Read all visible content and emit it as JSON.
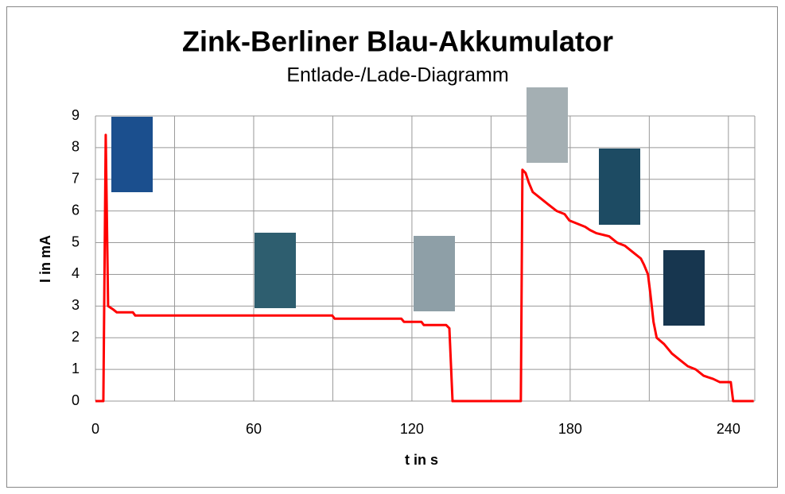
{
  "chart_data": {
    "type": "line",
    "title": "Zink-Berliner Blau-Akkumulator",
    "subtitle": "Entlade-/Lade-Diagramm",
    "x_label": "t in s",
    "y_label": "I in mA",
    "color": "#ff0000",
    "grid": true,
    "xlim": [
      0,
      250
    ],
    "ylim": [
      0,
      9
    ],
    "xticks": [
      0,
      60,
      120,
      180,
      240
    ],
    "xgrid": [
      0,
      30,
      60,
      90,
      120,
      150,
      180,
      210,
      240
    ],
    "yticks": [
      0,
      1,
      2,
      3,
      4,
      5,
      6,
      7,
      8,
      9
    ],
    "x": [
      0,
      3,
      3.9,
      4.8,
      6.6,
      8.1,
      14.2,
      15.1,
      89.8,
      90.7,
      116,
      117,
      123.6,
      124.5,
      133,
      134.2,
      135.4,
      161.3,
      161.9,
      163.1,
      164.3,
      165.8,
      168.8,
      171.8,
      174.9,
      177.9,
      179.7,
      182.7,
      185.7,
      187.5,
      189.9,
      194.8,
      197.8,
      200.8,
      203.8,
      206.8,
      208,
      209.5,
      210.4,
      211.6,
      212.8,
      215.6,
      218.6,
      221.6,
      224.6,
      227.6,
      230.6,
      234.2,
      236.7,
      240.9,
      241.8,
      249.6
    ],
    "values": [
      0,
      0,
      8.4,
      3.0,
      2.9,
      2.8,
      2.8,
      2.7,
      2.7,
      2.6,
      2.6,
      2.5,
      2.5,
      2.4,
      2.4,
      2.3,
      0,
      0,
      7.3,
      7.2,
      6.9,
      6.6,
      6.4,
      6.2,
      6.0,
      5.9,
      5.7,
      5.6,
      5.5,
      5.4,
      5.3,
      5.2,
      5.0,
      4.9,
      4.7,
      4.5,
      4.3,
      4.0,
      3.4,
      2.5,
      2.0,
      1.8,
      1.5,
      1.3,
      1.1,
      1.0,
      0.8,
      0.7,
      0.6,
      0.6,
      0,
      0
    ]
  }
}
